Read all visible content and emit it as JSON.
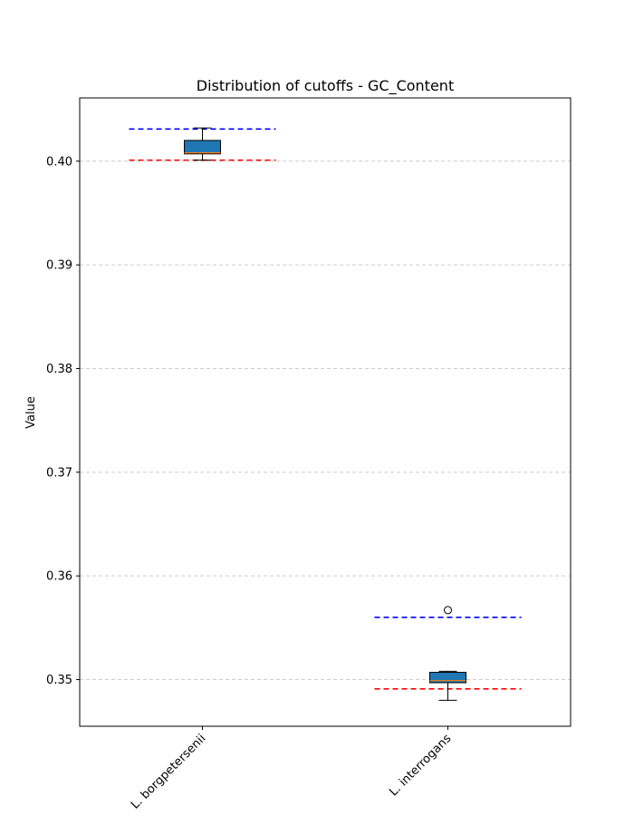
{
  "chart_data": {
    "type": "box",
    "title": "Distribution of cutoffs - GC_Content",
    "xlabel": "",
    "ylabel": "Value",
    "ylim": [
      0.3455,
      0.4061
    ],
    "yticks": [
      0.35,
      0.36,
      0.37,
      0.38,
      0.39,
      0.4
    ],
    "ytick_labels": [
      "0.35",
      "0.36",
      "0.37",
      "0.38",
      "0.39",
      "0.40"
    ],
    "grid": "y-dashed",
    "categories": [
      "L. borgpetersenii",
      "L. interrogans"
    ],
    "boxes": [
      {
        "category": "L. borgpetersenii",
        "whisker_low": 0.4001,
        "q1": 0.4007,
        "median": 0.4008,
        "q3": 0.402,
        "whisker_high": 0.4032,
        "outliers": [],
        "upper_cutoff": 0.4031,
        "lower_cutoff": 0.4001
      },
      {
        "category": "L. interrogans",
        "whisker_low": 0.348,
        "q1": 0.3497,
        "median": 0.3499,
        "q3": 0.3507,
        "whisker_high": 0.3508,
        "outliers": [
          0.3567
        ],
        "upper_cutoff": 0.356,
        "lower_cutoff": 0.3491
      }
    ],
    "colors": {
      "box_fill": "#1f77b4",
      "median": "#ff7f0e",
      "upper_cutoff": "#0000ff",
      "lower_cutoff": "#ff0000",
      "grid": "#cccccc"
    }
  }
}
